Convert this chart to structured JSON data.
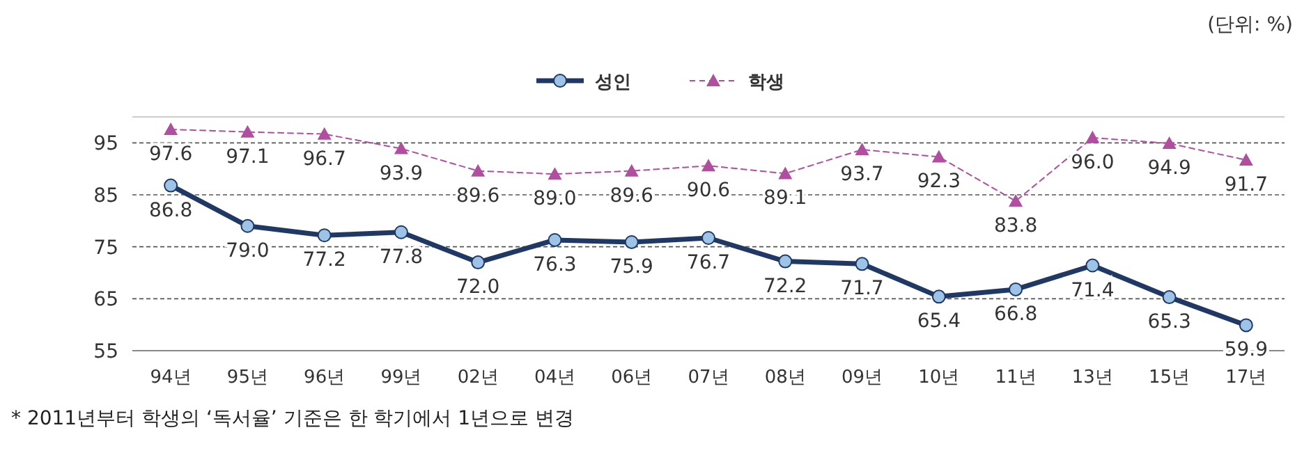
{
  "chart_data": {
    "type": "line",
    "categories": [
      "94년",
      "95년",
      "96년",
      "99년",
      "02년",
      "04년",
      "06년",
      "07년",
      "08년",
      "09년",
      "10년",
      "11년",
      "13년",
      "15년",
      "17년"
    ],
    "series": [
      {
        "name": "성인",
        "color": "#1f3864",
        "marker": "circle",
        "line_style": "solid",
        "values": [
          86.8,
          79.0,
          77.2,
          77.8,
          72.0,
          76.3,
          75.9,
          76.7,
          72.2,
          71.7,
          65.4,
          66.8,
          71.4,
          65.3,
          59.9
        ],
        "value_labels": [
          "86.8",
          "79.0",
          "77.2",
          "77.8",
          "72.0",
          "76.3",
          "75.9",
          "76.7",
          "72.2",
          "71.7",
          "65.4",
          "66.8",
          "71.4",
          "65.3",
          "59.9"
        ]
      },
      {
        "name": "학생",
        "color": "#b04fa0",
        "marker": "triangle",
        "line_style": "dashed",
        "values": [
          97.6,
          97.1,
          96.7,
          93.9,
          89.6,
          89.0,
          89.6,
          90.6,
          89.1,
          93.7,
          92.3,
          83.8,
          96.0,
          94.9,
          91.7
        ],
        "value_labels": [
          "97.6",
          "97.1",
          "96.7",
          "93.9",
          "89.6",
          "89.0",
          "89.6",
          "90.6",
          "89.1",
          "93.7",
          "92.3",
          "83.8",
          "96.0",
          "94.9",
          "91.7"
        ]
      }
    ],
    "ylim": [
      55,
      100
    ],
    "yticks": [
      55,
      65,
      75,
      85,
      95
    ],
    "grid": "y",
    "legend": "top",
    "annotations": [
      "(단위: %)",
      "* 2011년부터 학생의 ‘독서율’ 기준은 한 학기에서 1년으로 변경"
    ]
  }
}
